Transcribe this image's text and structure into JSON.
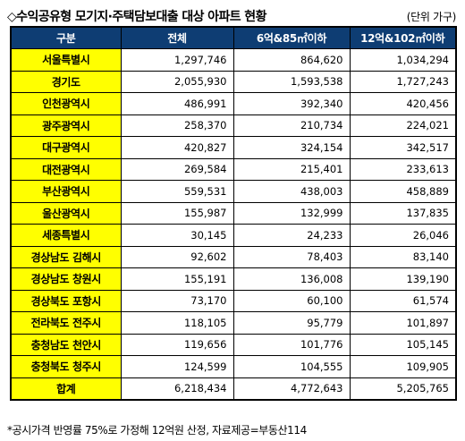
{
  "header": {
    "title": "◇수익공유형 모기지·주택담보대출 대상 아파트 현황",
    "unit": "(단위 가구)"
  },
  "table": {
    "columns": [
      "구분",
      "전체",
      "6억&85㎡이하",
      "12억&102㎡이하"
    ],
    "rows": [
      {
        "region": "서울특별시",
        "total": "1,297,746",
        "under6": "864,620",
        "under12": "1,034,294"
      },
      {
        "region": "경기도",
        "total": "2,055,930",
        "under6": "1,593,538",
        "under12": "1,727,243"
      },
      {
        "region": "인천광역시",
        "total": "486,991",
        "under6": "392,340",
        "under12": "420,456"
      },
      {
        "region": "광주광역시",
        "total": "258,370",
        "under6": "210,734",
        "under12": "224,021"
      },
      {
        "region": "대구광역시",
        "total": "420,827",
        "under6": "324,154",
        "under12": "342,517"
      },
      {
        "region": "대전광역시",
        "total": "269,584",
        "under6": "215,401",
        "under12": "233,613"
      },
      {
        "region": "부산광역시",
        "total": "559,531",
        "under6": "438,003",
        "under12": "458,889"
      },
      {
        "region": "울산광역시",
        "total": "155,987",
        "under6": "132,999",
        "under12": "137,835"
      },
      {
        "region": "세종특별시",
        "total": "30,145",
        "under6": "24,233",
        "under12": "26,046"
      },
      {
        "region": "경상남도 김해시",
        "total": "92,602",
        "under6": "78,403",
        "under12": "83,140"
      },
      {
        "region": "경상남도 창원시",
        "total": "155,191",
        "under6": "136,008",
        "under12": "139,190"
      },
      {
        "region": "경상북도 포항시",
        "total": "73,170",
        "under6": "60,100",
        "under12": "61,574"
      },
      {
        "region": "전라북도 전주시",
        "total": "118,105",
        "under6": "95,779",
        "under12": "101,897"
      },
      {
        "region": "충청남도 천안시",
        "total": "119,656",
        "under6": "101,776",
        "under12": "105,145"
      },
      {
        "region": "충청북도 청주시",
        "total": "124,599",
        "under6": "104,555",
        "under12": "109,905"
      },
      {
        "region": "합계",
        "total": "6,218,434",
        "under6": "4,772,643",
        "under12": "5,205,765"
      }
    ]
  },
  "footnote": "*공시가격 반영률 75%로 가정해 12억원 산정, 자료제공=부동산114",
  "colors": {
    "header_bg": "#0e3d73",
    "region_bg": "#ffff00"
  }
}
